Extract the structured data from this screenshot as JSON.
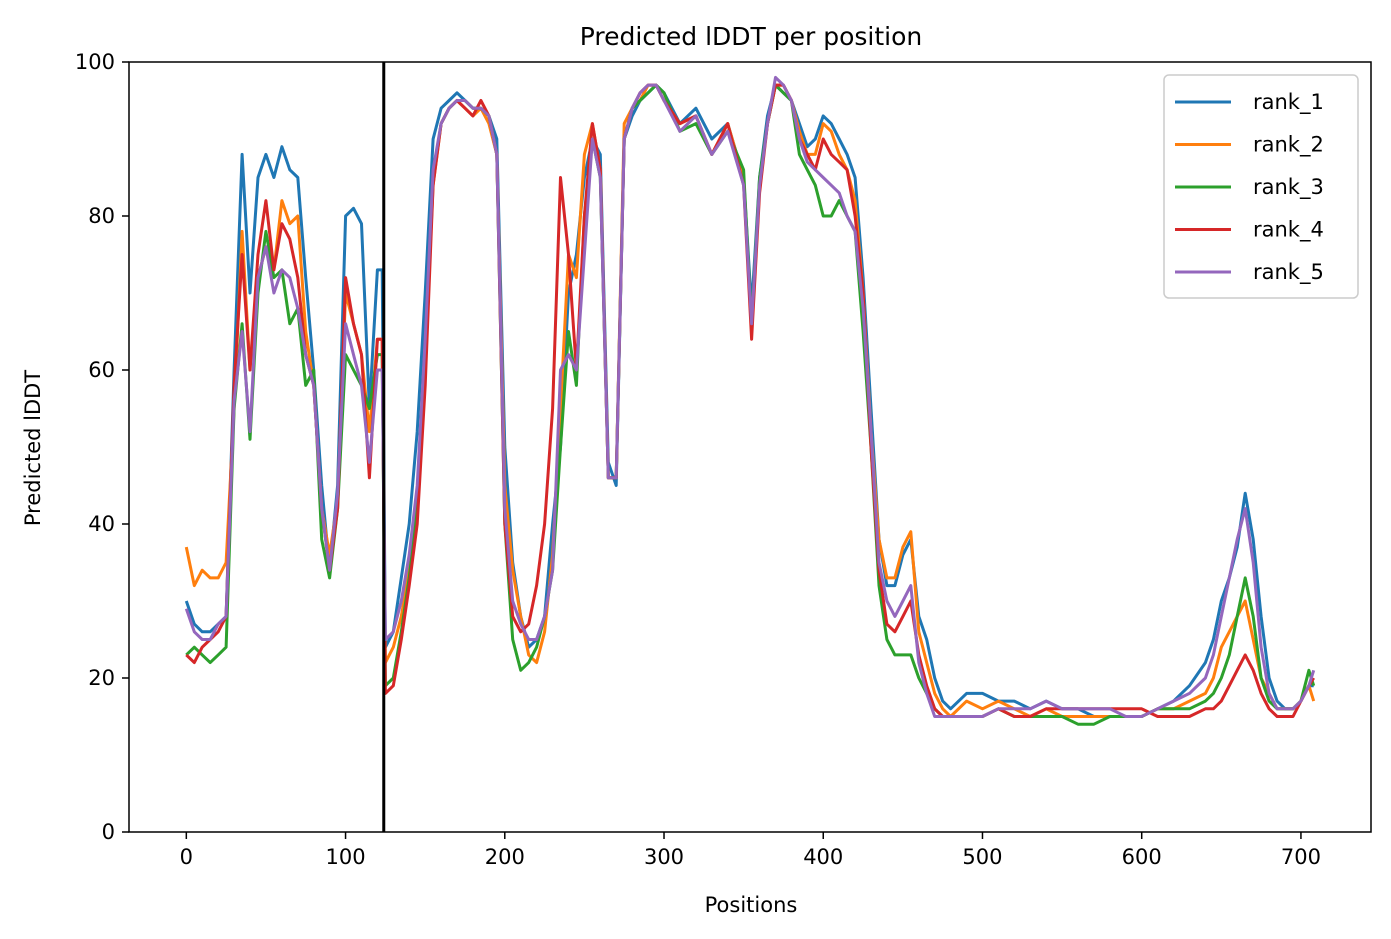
{
  "chart_data": {
    "type": "line",
    "title": "Predicted lDDT per position",
    "xlabel": "Positions",
    "ylabel": "Predicted lDDT",
    "xlim": [
      -36,
      744
    ],
    "ylim": [
      0,
      100
    ],
    "xticks": [
      0,
      100,
      200,
      300,
      400,
      500,
      600,
      700
    ],
    "yticks": [
      0,
      20,
      40,
      60,
      80,
      100
    ],
    "grid": false,
    "legend_position": "top-right",
    "vertical_line_x": 124,
    "x": [
      0,
      5,
      10,
      15,
      20,
      25,
      30,
      35,
      40,
      45,
      50,
      55,
      60,
      65,
      70,
      75,
      80,
      85,
      90,
      95,
      100,
      105,
      110,
      115,
      120,
      123,
      125,
      130,
      135,
      140,
      145,
      150,
      155,
      160,
      165,
      170,
      175,
      180,
      185,
      190,
      195,
      200,
      205,
      210,
      215,
      220,
      225,
      230,
      235,
      240,
      245,
      250,
      255,
      260,
      265,
      270,
      275,
      280,
      285,
      290,
      295,
      300,
      310,
      320,
      330,
      340,
      350,
      355,
      360,
      365,
      370,
      375,
      380,
      385,
      390,
      395,
      400,
      405,
      410,
      415,
      420,
      425,
      430,
      435,
      440,
      445,
      450,
      455,
      460,
      465,
      470,
      475,
      480,
      490,
      500,
      510,
      520,
      530,
      540,
      550,
      560,
      570,
      580,
      590,
      600,
      610,
      620,
      630,
      640,
      645,
      650,
      655,
      660,
      665,
      670,
      675,
      680,
      685,
      690,
      695,
      700,
      705,
      708
    ],
    "series": [
      {
        "name": "rank_1",
        "color": "#1f77b4",
        "values": [
          30,
          27,
          26,
          26,
          27,
          28,
          60,
          88,
          70,
          85,
          88,
          85,
          89,
          86,
          85,
          72,
          60,
          45,
          34,
          45,
          80,
          81,
          79,
          55,
          73,
          73,
          24,
          26,
          33,
          40,
          52,
          70,
          90,
          94,
          95,
          96,
          95,
          94,
          94,
          93,
          90,
          50,
          35,
          28,
          24,
          25,
          28,
          40,
          50,
          70,
          75,
          85,
          90,
          88,
          48,
          45,
          90,
          93,
          95,
          96,
          97,
          96,
          92,
          94,
          90,
          92,
          85,
          68,
          85,
          93,
          97,
          96,
          95,
          92,
          89,
          90,
          93,
          92,
          90,
          88,
          85,
          72,
          55,
          38,
          32,
          32,
          36,
          38,
          28,
          25,
          20,
          17,
          16,
          18,
          18,
          17,
          17,
          16,
          17,
          16,
          16,
          15,
          15,
          15,
          15,
          16,
          17,
          19,
          22,
          25,
          30,
          33,
          37,
          44,
          38,
          28,
          20,
          17,
          16,
          16,
          17,
          19,
          19
        ]
      },
      {
        "name": "rank_2",
        "color": "#ff7f0e",
        "values": [
          37,
          32,
          34,
          33,
          33,
          35,
          55,
          78,
          60,
          72,
          76,
          73,
          82,
          79,
          80,
          65,
          58,
          42,
          36,
          43,
          70,
          66,
          62,
          52,
          64,
          64,
          22,
          24,
          28,
          34,
          44,
          62,
          84,
          92,
          94,
          95,
          94,
          93,
          94,
          92,
          88,
          45,
          34,
          28,
          23,
          22,
          26,
          36,
          55,
          75,
          72,
          88,
          92,
          86,
          46,
          46,
          92,
          94,
          95,
          97,
          97,
          95,
          92,
          93,
          88,
          92,
          85,
          65,
          84,
          92,
          97,
          97,
          95,
          91,
          88,
          88,
          92,
          91,
          88,
          86,
          82,
          70,
          52,
          38,
          33,
          33,
          37,
          39,
          26,
          22,
          18,
          16,
          15,
          17,
          16,
          17,
          16,
          15,
          16,
          15,
          15,
          15,
          15,
          15,
          15,
          16,
          16,
          17,
          18,
          20,
          24,
          26,
          28,
          30,
          25,
          20,
          18,
          16,
          16,
          16,
          17,
          19,
          17
        ]
      },
      {
        "name": "rank_3",
        "color": "#2ca02c",
        "values": [
          23,
          24,
          23,
          22,
          23,
          24,
          55,
          66,
          51,
          70,
          78,
          72,
          73,
          66,
          68,
          58,
          60,
          38,
          33,
          42,
          62,
          60,
          58,
          55,
          62,
          62,
          19,
          20,
          26,
          33,
          42,
          60,
          85,
          92,
          94,
          95,
          95,
          94,
          94,
          93,
          88,
          40,
          25,
          21,
          22,
          24,
          28,
          34,
          50,
          65,
          58,
          80,
          90,
          85,
          46,
          46,
          90,
          94,
          95,
          96,
          97,
          96,
          91,
          92,
          88,
          91,
          86,
          66,
          85,
          92,
          97,
          96,
          95,
          88,
          86,
          84,
          80,
          80,
          82,
          80,
          78,
          65,
          50,
          32,
          25,
          23,
          23,
          23,
          20,
          18,
          16,
          15,
          15,
          15,
          15,
          16,
          15,
          15,
          15,
          15,
          14,
          14,
          15,
          15,
          15,
          16,
          16,
          16,
          17,
          18,
          20,
          23,
          28,
          33,
          28,
          20,
          17,
          16,
          16,
          16,
          17,
          21,
          19
        ]
      },
      {
        "name": "rank_4",
        "color": "#d62728",
        "values": [
          23,
          22,
          24,
          25,
          26,
          28,
          58,
          75,
          60,
          75,
          82,
          73,
          79,
          77,
          72,
          62,
          58,
          42,
          34,
          42,
          72,
          66,
          62,
          46,
          64,
          64,
          18,
          19,
          25,
          32,
          40,
          58,
          84,
          92,
          94,
          95,
          94,
          93,
          95,
          93,
          88,
          40,
          28,
          26,
          27,
          32,
          40,
          55,
          85,
          75,
          60,
          80,
          92,
          86,
          46,
          46,
          90,
          94,
          96,
          97,
          97,
          95,
          92,
          93,
          88,
          92,
          84,
          64,
          83,
          92,
          97,
          97,
          95,
          90,
          88,
          86,
          90,
          88,
          87,
          86,
          80,
          70,
          50,
          34,
          27,
          26,
          28,
          30,
          23,
          19,
          16,
          15,
          15,
          15,
          15,
          16,
          15,
          15,
          16,
          16,
          16,
          16,
          16,
          16,
          16,
          15,
          15,
          15,
          16,
          16,
          17,
          19,
          21,
          23,
          21,
          18,
          16,
          15,
          15,
          15,
          17,
          19,
          20
        ]
      },
      {
        "name": "rank_5",
        "color": "#9467bd",
        "values": [
          29,
          26,
          25,
          25,
          27,
          28,
          56,
          65,
          52,
          72,
          76,
          70,
          73,
          72,
          68,
          62,
          58,
          42,
          34,
          44,
          66,
          62,
          58,
          48,
          60,
          60,
          25,
          26,
          30,
          36,
          45,
          64,
          86,
          92,
          94,
          95,
          95,
          94,
          94,
          93,
          88,
          42,
          30,
          27,
          25,
          25,
          28,
          34,
          60,
          62,
          60,
          75,
          90,
          85,
          46,
          46,
          90,
          94,
          96,
          97,
          97,
          95,
          91,
          93,
          88,
          91,
          84,
          66,
          84,
          92,
          98,
          97,
          95,
          90,
          87,
          86,
          85,
          84,
          83,
          80,
          78,
          68,
          52,
          35,
          30,
          28,
          30,
          32,
          22,
          18,
          15,
          15,
          15,
          15,
          15,
          16,
          16,
          16,
          17,
          16,
          16,
          16,
          16,
          15,
          15,
          16,
          17,
          18,
          20,
          23,
          28,
          33,
          38,
          42,
          35,
          24,
          18,
          16,
          16,
          16,
          17,
          19,
          21
        ]
      }
    ]
  }
}
